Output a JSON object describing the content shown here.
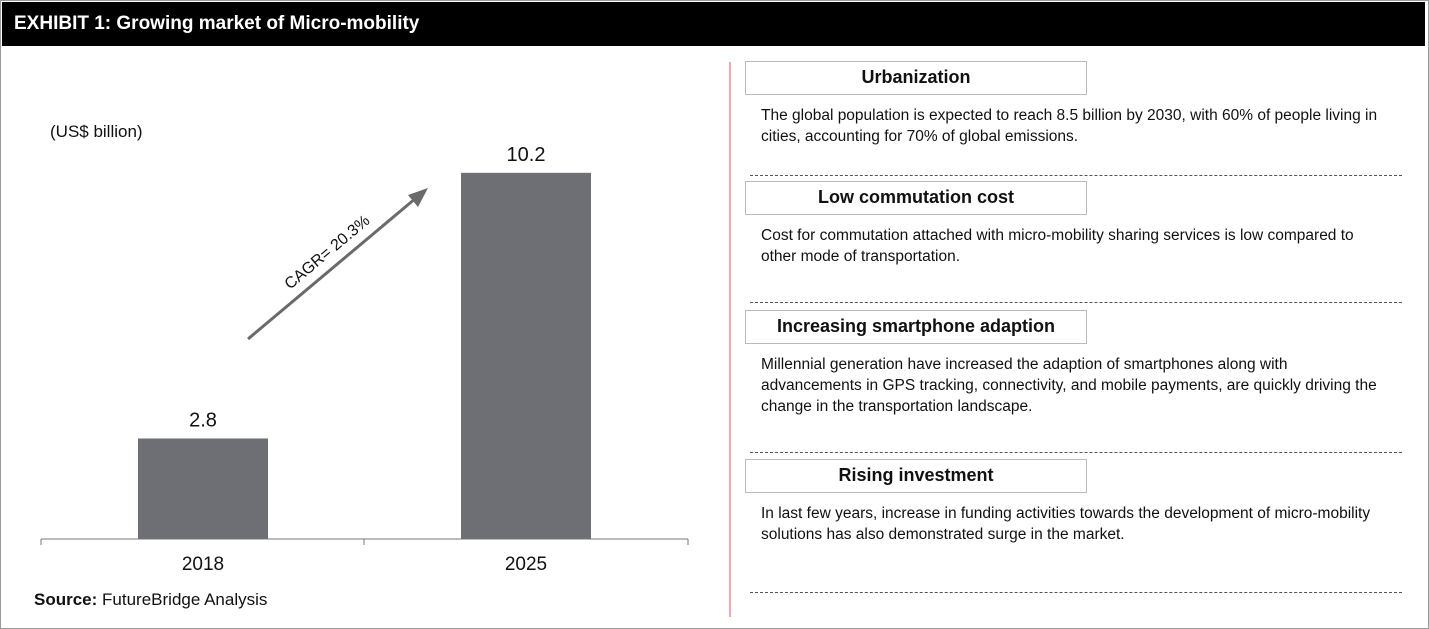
{
  "header": {
    "title": "EXHIBIT 1: Growing market of Micro-mobility"
  },
  "chart_data": {
    "type": "bar",
    "unit_label": "(US$ billion)",
    "categories": [
      "2018",
      "2025"
    ],
    "values": [
      2.8,
      10.2
    ],
    "data_labels": [
      "2.8",
      "10.2"
    ],
    "annotation": "CAGR= 20.3%",
    "bar_color": "#6e6e75",
    "grid": false,
    "legend": "none"
  },
  "source": {
    "label": "Source:",
    "text": "FutureBridge Analysis"
  },
  "factors": [
    {
      "title": "Urbanization",
      "text": "The global population  is expected to reach 8.5 billion by 2030, with 60% of people living  in cities, accounting for 70% of global emissions."
    },
    {
      "title": "Low commutation cost",
      "text": "Cost for commutation  attached with micro-mobility sharing services is low compared to other mode of transportation."
    },
    {
      "title": "Increasing smartphone adaption",
      "text": "Millennial generation  have increased the adaption of smartphones  along with advancements  in GPS tracking, connectivity, and mobile payments, are quickly driving the change in the transportation  landscape."
    },
    {
      "title": "Rising investment",
      "text": "In last few years,  increase in funding activities towards the development  of micro-mobility solutions  has also demonstrated  surge in the market."
    }
  ]
}
